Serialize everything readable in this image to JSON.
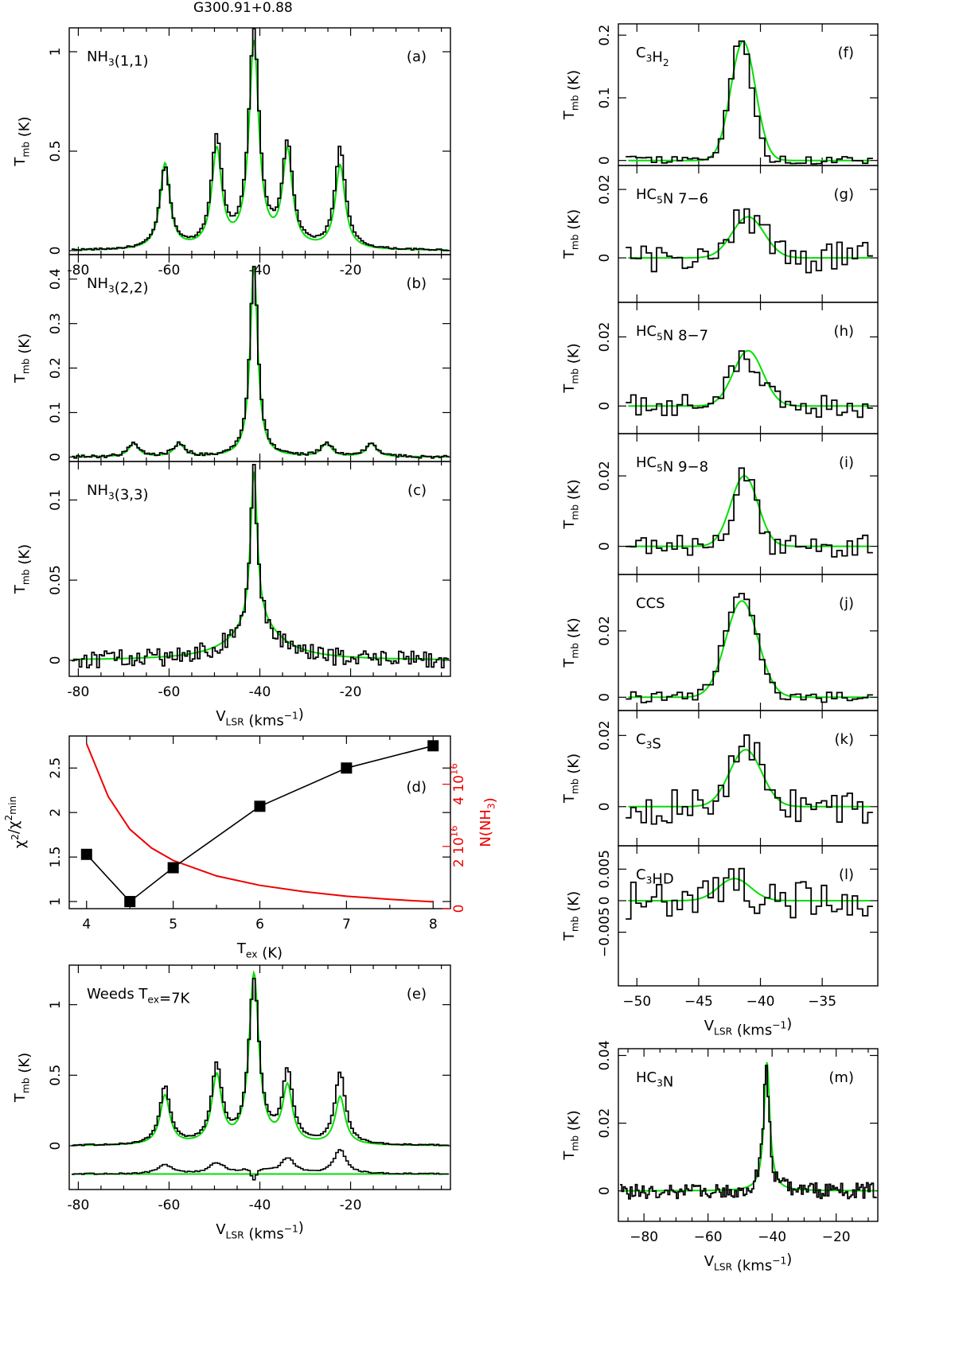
{
  "figure_title": "G300.91+0.88",
  "colors": {
    "observed": "#000000",
    "model": "#00e000",
    "column_density": "#ee0000"
  },
  "chart_data": [
    {
      "id": "a",
      "type": "line",
      "label_parts": [
        [
          "NH",
          ""
        ],
        [
          "3",
          "sub"
        ],
        [
          "(1,1)",
          ""
        ]
      ],
      "panel_tag": "(a)",
      "xlim": [
        -82,
        2
      ],
      "ylim": [
        -0.02,
        1.12
      ],
      "yticks": [
        {
          "v": 0,
          "t": "0"
        },
        {
          "v": 0.5,
          "t": "0.5"
        },
        {
          "v": 1,
          "t": "1"
        }
      ],
      "xticks": [
        {
          "v": -80,
          "t": "-80"
        },
        {
          "v": -60,
          "t": "-60"
        },
        {
          "v": -40,
          "t": "-40"
        },
        {
          "v": -20,
          "t": "-20"
        }
      ],
      "ylabel": "T_mb (K)",
      "xlabel": "",
      "components": [
        {
          "center": -60.9,
          "height": 0.41,
          "width": 1.4
        },
        {
          "center": -49.5,
          "height": 0.55,
          "width": 1.4
        },
        {
          "center": -41.3,
          "height": 1.08,
          "width": 1.4
        },
        {
          "center": -33.9,
          "height": 0.51,
          "width": 1.4
        },
        {
          "center": -22.3,
          "height": 0.51,
          "width": 1.4
        }
      ],
      "model_components": [
        {
          "center": -60.9,
          "height": 0.43,
          "width": 1.3
        },
        {
          "center": -49.5,
          "height": 0.49,
          "width": 1.3
        },
        {
          "center": -41.3,
          "height": 1.03,
          "width": 1.3
        },
        {
          "center": -33.9,
          "height": 0.48,
          "width": 1.3
        },
        {
          "center": -22.3,
          "height": 0.42,
          "width": 1.3
        }
      ],
      "noise": 0.004
    },
    {
      "id": "b",
      "type": "line",
      "label_parts": [
        [
          "NH",
          ""
        ],
        [
          "3",
          "sub"
        ],
        [
          "(2,2)",
          ""
        ]
      ],
      "panel_tag": "(b)",
      "xlim": [
        -82,
        2
      ],
      "ylim": [
        -0.01,
        0.455
      ],
      "yticks": [
        {
          "v": 0,
          "t": "0"
        },
        {
          "v": 0.1,
          "t": "0.1"
        },
        {
          "v": 0.2,
          "t": "0.2"
        },
        {
          "v": 0.3,
          "t": "0.3"
        },
        {
          "v": 0.4,
          "t": "0.4"
        }
      ],
      "xticks": [
        {
          "v": -80,
          "t": ""
        },
        {
          "v": -60,
          "t": ""
        },
        {
          "v": -40,
          "t": ""
        },
        {
          "v": -20,
          "t": ""
        }
      ],
      "ylabel": "T_mb (K)",
      "xlabel": "",
      "components": [
        {
          "center": -67.8,
          "height": 0.03,
          "width": 1.5
        },
        {
          "center": -57.8,
          "height": 0.03,
          "width": 1.5
        },
        {
          "center": -41.3,
          "height": 0.43,
          "width": 1.1
        },
        {
          "center": -25.3,
          "height": 0.03,
          "width": 1.5
        },
        {
          "center": -15.4,
          "height": 0.03,
          "width": 1.5
        }
      ],
      "model_components": [
        {
          "center": -67.8,
          "height": 0.03,
          "width": 1.3
        },
        {
          "center": -57.8,
          "height": 0.03,
          "width": 1.3
        },
        {
          "center": -41.3,
          "height": 0.43,
          "width": 1.0
        },
        {
          "center": -25.3,
          "height": 0.03,
          "width": 1.3
        },
        {
          "center": -15.4,
          "height": 0.03,
          "width": 1.3
        }
      ],
      "noise": 0.003
    },
    {
      "id": "c",
      "type": "line",
      "label_parts": [
        [
          "NH",
          ""
        ],
        [
          "3",
          "sub"
        ],
        [
          "(3,3)",
          ""
        ]
      ],
      "panel_tag": "(c)",
      "xlim": [
        -82,
        2
      ],
      "ylim": [
        -0.01,
        0.124
      ],
      "yticks": [
        {
          "v": 0,
          "t": "0"
        },
        {
          "v": 0.05,
          "t": "0.05"
        },
        {
          "v": 0.1,
          "t": "0.1"
        }
      ],
      "xticks": [
        {
          "v": -80,
          "t": "-80"
        },
        {
          "v": -60,
          "t": "-60"
        },
        {
          "v": -40,
          "t": "-40"
        },
        {
          "v": -20,
          "t": "-20"
        }
      ],
      "ylabel": "T_mb (K)",
      "xlabel": "V_LSR (kms^-1)",
      "components": [
        {
          "center": -41.3,
          "height": 0.095,
          "width": 0.9
        },
        {
          "center": -41.3,
          "height": 0.022,
          "width": 6
        }
      ],
      "model_components": [
        {
          "center": -41.3,
          "height": 0.096,
          "width": 0.9
        },
        {
          "center": -40.8,
          "height": 0.022,
          "width": 6.5
        }
      ],
      "noise": 0.005
    },
    {
      "id": "d",
      "type": "scatter",
      "x": [
        4,
        4.5,
        5,
        6,
        7,
        8
      ],
      "y": [
        1.53,
        1.0,
        1.38,
        2.07,
        2.5,
        2.75
      ],
      "xlim": [
        3.8,
        8.2
      ],
      "ylim": [
        0.92,
        2.86
      ],
      "ylabel": "χ²/χ²_min",
      "xlabel": "T_ex (K)",
      "panel_tag": "(d)",
      "yticks": [
        {
          "v": 1,
          "t": "1"
        },
        {
          "v": 1.5,
          "t": "1.5"
        },
        {
          "v": 2,
          "t": "2"
        },
        {
          "v": 2.5,
          "t": "2.5"
        }
      ],
      "xticks": [
        {
          "v": 4,
          "t": "4"
        },
        {
          "v": 5,
          "t": "5"
        },
        {
          "v": 6,
          "t": "6"
        },
        {
          "v": 7,
          "t": "7"
        },
        {
          "v": 8,
          "t": "8"
        }
      ],
      "secondary": {
        "ylabel": "N(NH3)",
        "ylim": [
          0,
          5.55e+16
        ],
        "yticks": [
          {
            "v": 0,
            "t": "0"
          },
          {
            "v": 2e+16,
            "t": "2 10^16"
          },
          {
            "v": 4e+16,
            "t": "4 10^16"
          }
        ],
        "curve_x": [
          4,
          4.25,
          4.5,
          4.75,
          5,
          5.5,
          6,
          6.5,
          7,
          7.5,
          8
        ],
        "curve_y": [
          5.3e+16,
          3.6e+16,
          2.55e+16,
          1.95e+16,
          1.55e+16,
          1.05e+16,
          7500000000000000.0,
          5500000000000000.0,
          4000000000000000.0,
          3000000000000000.0,
          2200000000000000.0
        ]
      }
    },
    {
      "id": "e",
      "type": "line",
      "label_parts": [
        [
          "Weeds  T",
          ""
        ],
        [
          "ex",
          "sub"
        ],
        [
          "=7K",
          ""
        ]
      ],
      "panel_tag": "(e)",
      "xlim": [
        -82,
        2
      ],
      "ylim": [
        -0.31,
        1.28
      ],
      "yticks": [
        {
          "v": 0,
          "t": "0"
        },
        {
          "v": 0.5,
          "t": "0.5"
        },
        {
          "v": 1,
          "t": "1"
        }
      ],
      "xticks": [
        {
          "v": -80,
          "t": "-80"
        },
        {
          "v": -60,
          "t": "-60"
        },
        {
          "v": -40,
          "t": "-40"
        },
        {
          "v": -20,
          "t": "-20"
        }
      ],
      "ylabel": "T_mb (K)",
      "xlabel": "V_LSR (kms^-1)",
      "components": [
        {
          "center": -60.9,
          "height": 0.41,
          "width": 1.4
        },
        {
          "center": -49.5,
          "height": 0.55,
          "width": 1.4
        },
        {
          "center": -41.3,
          "height": 1.15,
          "width": 1.4
        },
        {
          "center": -33.9,
          "height": 0.51,
          "width": 1.4
        },
        {
          "center": -22.3,
          "height": 0.51,
          "width": 1.4
        }
      ],
      "model_components": [
        {
          "center": -60.9,
          "height": 0.35,
          "width": 1.3
        },
        {
          "center": -49.5,
          "height": 0.48,
          "width": 1.3
        },
        {
          "center": -41.3,
          "height": 1.2,
          "width": 1.3
        },
        {
          "center": -33.9,
          "height": 0.4,
          "width": 1.3
        },
        {
          "center": -22.3,
          "height": 0.34,
          "width": 1.3
        }
      ],
      "residual_offset": -0.2,
      "noise": 0.004
    },
    {
      "id": "f",
      "type": "line",
      "label_parts": [
        [
          "C",
          ""
        ],
        [
          "3",
          "sub"
        ],
        [
          "H",
          ""
        ],
        [
          "2",
          "sub"
        ]
      ],
      "panel_tag": "(f)",
      "xlim": [
        -51.5,
        -30.5
      ],
      "ylim": [
        -0.008,
        0.218
      ],
      "yticks": [
        {
          "v": 0,
          "t": "0"
        },
        {
          "v": 0.1,
          "t": "0.1"
        },
        {
          "v": 0.2,
          "t": "0.2"
        }
      ],
      "xticks": [
        {
          "v": -50,
          "t": ""
        },
        {
          "v": -45,
          "t": ""
        },
        {
          "v": -40,
          "t": ""
        },
        {
          "v": -35,
          "t": ""
        }
      ],
      "ylabel": "T_mb (K)",
      "xlabel": "",
      "components": [
        {
          "center": -41.6,
          "height": 0.19,
          "width": 0.9
        }
      ],
      "model_components": [
        {
          "center": -41.4,
          "height": 0.19,
          "width": 1.0
        }
      ],
      "noise": 0.006
    },
    {
      "id": "g",
      "type": "line",
      "label_parts": [
        [
          "HC",
          ""
        ],
        [
          "5",
          "sub"
        ],
        [
          "N  7−6",
          ""
        ]
      ],
      "panel_tag": "(g)",
      "xlim": [
        -51.5,
        -30.5
      ],
      "ylim": [
        -0.013,
        0.027
      ],
      "yticks": [
        {
          "v": 0,
          "t": "0"
        },
        {
          "v": 0.02,
          "t": "0.02"
        }
      ],
      "xticks": [
        {
          "v": -50,
          "t": ""
        },
        {
          "v": -45,
          "t": ""
        },
        {
          "v": -40,
          "t": ""
        },
        {
          "v": -35,
          "t": ""
        }
      ],
      "ylabel": "T_mb (K)",
      "xlabel": "",
      "components": [
        {
          "center": -41.0,
          "height": 0.012,
          "width": 1.3
        }
      ],
      "model_components": [
        {
          "center": -41.0,
          "height": 0.012,
          "width": 1.3
        }
      ],
      "noise": 0.0045
    },
    {
      "id": "h",
      "type": "line",
      "label_parts": [
        [
          "HC",
          ""
        ],
        [
          "5",
          "sub"
        ],
        [
          "N  8−7",
          ""
        ]
      ],
      "panel_tag": "(h)",
      "xlim": [
        -51.5,
        -30.5
      ],
      "ylim": [
        -0.008,
        0.03
      ],
      "yticks": [
        {
          "v": 0,
          "t": "0"
        },
        {
          "v": 0.02,
          "t": "0.02"
        }
      ],
      "xticks": [
        {
          "v": -50,
          "t": ""
        },
        {
          "v": -45,
          "t": ""
        },
        {
          "v": -40,
          "t": ""
        },
        {
          "v": -35,
          "t": ""
        }
      ],
      "ylabel": "T_mb (K)",
      "xlabel": "",
      "components": [
        {
          "center": -41.2,
          "height": 0.014,
          "width": 1.2
        }
      ],
      "model_components": [
        {
          "center": -41.0,
          "height": 0.016,
          "width": 1.2
        }
      ],
      "noise": 0.003
    },
    {
      "id": "i",
      "type": "line",
      "label_parts": [
        [
          "HC",
          ""
        ],
        [
          "5",
          "sub"
        ],
        [
          "N  9−8",
          ""
        ]
      ],
      "panel_tag": "(i)",
      "xlim": [
        -51.5,
        -30.5
      ],
      "ylim": [
        -0.008,
        0.032
      ],
      "yticks": [
        {
          "v": 0,
          "t": "0"
        },
        {
          "v": 0.02,
          "t": "0.02"
        }
      ],
      "xticks": [
        {
          "v": -50,
          "t": ""
        },
        {
          "v": -45,
          "t": ""
        },
        {
          "v": -40,
          "t": ""
        },
        {
          "v": -35,
          "t": ""
        }
      ],
      "ylabel": "T_mb (K)",
      "xlabel": "",
      "components": [
        {
          "center": -41.3,
          "height": 0.02,
          "width": 0.9
        }
      ],
      "model_components": [
        {
          "center": -41.3,
          "height": 0.02,
          "width": 1.1
        }
      ],
      "noise": 0.003
    },
    {
      "id": "j",
      "type": "line",
      "label_parts": [
        [
          "CCS",
          ""
        ]
      ],
      "panel_tag": "(j)",
      "xlim": [
        -51.5,
        -30.5
      ],
      "ylim": [
        -0.004,
        0.037
      ],
      "yticks": [
        {
          "v": 0,
          "t": "0"
        },
        {
          "v": 0.02,
          "t": "0.02"
        }
      ],
      "xticks": [
        {
          "v": -50,
          "t": ""
        },
        {
          "v": -45,
          "t": ""
        },
        {
          "v": -40,
          "t": ""
        },
        {
          "v": -35,
          "t": ""
        }
      ],
      "ylabel": "T_mb (K)",
      "xlabel": "",
      "components": [
        {
          "center": -41.6,
          "height": 0.03,
          "width": 1.3
        }
      ],
      "model_components": [
        {
          "center": -41.5,
          "height": 0.029,
          "width": 1.3
        }
      ],
      "noise": 0.0015
    },
    {
      "id": "k",
      "type": "line",
      "label_parts": [
        [
          "C",
          ""
        ],
        [
          "3",
          "sub"
        ],
        [
          "S",
          ""
        ]
      ],
      "panel_tag": "(k)",
      "xlim": [
        -51.5,
        -30.5
      ],
      "ylim": [
        -0.011,
        0.027
      ],
      "yticks": [
        {
          "v": 0,
          "t": "0"
        },
        {
          "v": 0.02,
          "t": "0.02"
        }
      ],
      "xticks": [
        {
          "v": -50,
          "t": ""
        },
        {
          "v": -45,
          "t": ""
        },
        {
          "v": -40,
          "t": ""
        },
        {
          "v": -35,
          "t": ""
        }
      ],
      "ylabel": "T_mb (K)",
      "xlabel": "",
      "components": [
        {
          "center": -41.0,
          "height": 0.016,
          "width": 1.4
        }
      ],
      "model_components": [
        {
          "center": -41.2,
          "height": 0.016,
          "width": 1.3
        }
      ],
      "noise": 0.0045
    },
    {
      "id": "l",
      "type": "line",
      "label_parts": [
        [
          "C",
          ""
        ],
        [
          "3",
          "sub"
        ],
        [
          "HD",
          ""
        ]
      ],
      "panel_tag": "(l)",
      "xlim": [
        -51.5,
        -30.5
      ],
      "ylim": [
        -0.0135,
        0.0087
      ],
      "yticks": [
        {
          "v": -0.005,
          "t": "−0.005"
        },
        {
          "v": 0,
          "t": "0"
        },
        {
          "v": 0.005,
          "t": "0.005"
        }
      ],
      "xticks": [
        {
          "v": -50,
          "t": "−50"
        },
        {
          "v": -45,
          "t": "−45"
        },
        {
          "v": -40,
          "t": "−40"
        },
        {
          "v": -35,
          "t": "−35"
        }
      ],
      "ylabel": "T_mb (K)",
      "xlabel": "V_LSR (kms^-1)",
      "components": [
        {
          "center": -42.2,
          "height": 0.003,
          "width": 1.3
        }
      ],
      "model_components": [
        {
          "center": -42.1,
          "height": 0.0035,
          "width": 1.3
        }
      ],
      "noise": 0.0028
    },
    {
      "id": "m",
      "type": "line",
      "label_parts": [
        [
          "HC",
          ""
        ],
        [
          "3",
          "sub"
        ],
        [
          "N",
          ""
        ]
      ],
      "panel_tag": "(m)",
      "xlim": [
        -88,
        -7
      ],
      "ylim": [
        -0.009,
        0.042
      ],
      "yticks": [
        {
          "v": 0,
          "t": "0"
        },
        {
          "v": 0.02,
          "t": "0.02"
        },
        {
          "v": 0.04,
          "t": "0.04"
        }
      ],
      "xticks": [
        {
          "v": -80,
          "t": "−80"
        },
        {
          "v": -60,
          "t": "−60"
        },
        {
          "v": -40,
          "t": "−40"
        },
        {
          "v": -20,
          "t": "−20"
        }
      ],
      "ylabel": "T_mb (K)",
      "xlabel": "V_LSR (kms^-1)",
      "components": [
        {
          "center": -41.8,
          "height": 0.036,
          "width": 1.1
        }
      ],
      "model_components": [
        {
          "center": -41.6,
          "height": 0.038,
          "width": 1.1
        }
      ],
      "noise": 0.0022
    }
  ]
}
